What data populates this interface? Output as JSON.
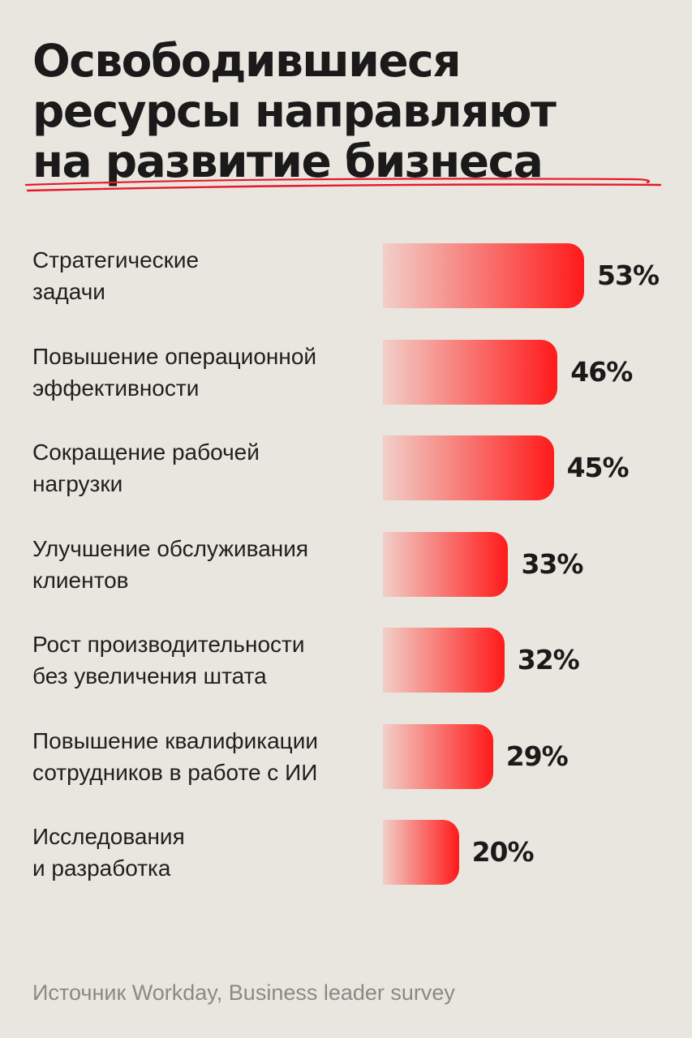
{
  "colors": {
    "background": "#e8e6de",
    "bar_start": "#f2cfc8",
    "bar_end": "#ff1a1a",
    "underline": "#e8182a"
  },
  "chart_data": {
    "type": "bar",
    "orientation": "horizontal",
    "title_lines": [
      "Освободившиеся",
      "ресурсы направляют",
      "на развитие бизнеса"
    ],
    "categories": [
      "Стратегические\nзадачи",
      "Повышение операционной\nэффективности",
      "Сокращение рабочей\nнагрузки",
      "Улучшение обслуживания\nклиентов",
      "Рост производительности\nбез увеличения штата",
      "Повышение квалификации\nсотрудников в работе с ИИ",
      "Исследования\nи разработка"
    ],
    "values": [
      53,
      46,
      45,
      33,
      32,
      29,
      20
    ],
    "value_labels": [
      "53%",
      "46%",
      "45%",
      "33%",
      "32%",
      "29%",
      "20%"
    ],
    "unit": "%",
    "grid": false,
    "legend": "none"
  },
  "source": "Источник Workday, Business leader survey"
}
